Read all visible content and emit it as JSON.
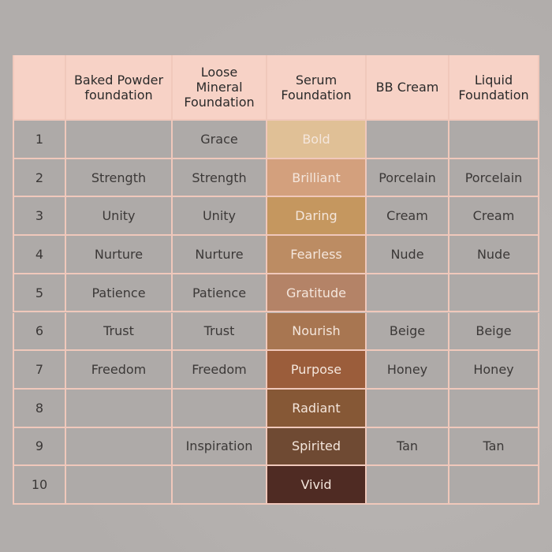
{
  "table": {
    "headers": [
      "Baked Powder foundation",
      "Loose Mineral Foundation",
      "Serum Foundation",
      "BB Cream",
      "Liquid Foundation"
    ],
    "rows": [
      [
        "1",
        null,
        "Grace",
        "Bold",
        null,
        null
      ],
      [
        "2",
        "Strength",
        "Strength",
        "Brilliant",
        "Porcelain",
        "Porcelain"
      ],
      [
        "3",
        "Unity",
        "Unity",
        "Daring",
        "Cream",
        "Cream"
      ],
      [
        "4",
        "Nurture",
        "Nurture",
        "Fearless",
        "Nude",
        "Nude"
      ],
      [
        "5",
        "Patience",
        "Patience",
        "Gratitude",
        null,
        null
      ],
      [
        "6",
        "Trust",
        "Trust",
        "Nourish",
        "Beige",
        "Beige"
      ],
      [
        "7",
        "Freedom",
        "Freedom",
        "Purpose",
        "Honey",
        "Honey"
      ],
      [
        "8",
        null,
        null,
        "Radiant",
        null,
        null
      ],
      [
        "9",
        null,
        "Inspiration",
        "Spirited",
        "Tan",
        "Tan"
      ],
      [
        "10",
        null,
        null,
        "Vivid",
        null,
        null
      ]
    ],
    "shade_colors": [
      "#e0c096",
      "#d3a07d",
      "#c5975f",
      "#bc8c63",
      "#b48367",
      "#a87651",
      "#9b5d3b",
      "#865836",
      "#6f4a33",
      "#4f2b23"
    ]
  }
}
